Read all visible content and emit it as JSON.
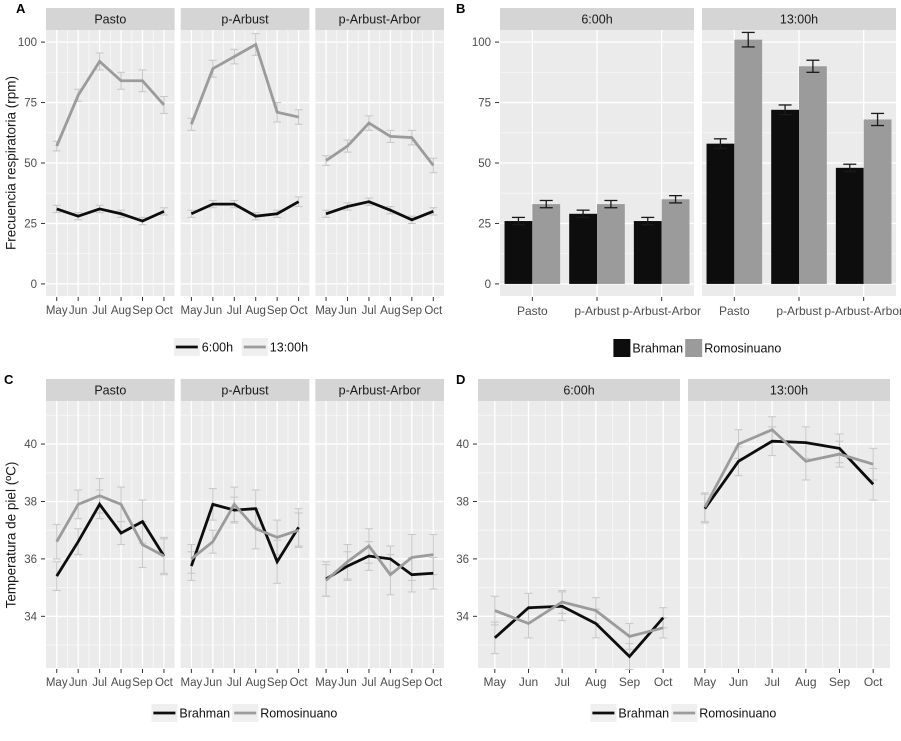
{
  "colors": {
    "background": "#ffffff",
    "panel_bg": "#ebebeb",
    "strip_bg": "#d5d5d5",
    "grid_major": "#ffffff",
    "grid_minor": "#f8f8f8",
    "series_black": "#0d0d0d",
    "series_gray": "#9b9b9b",
    "errorbar_light": "#c9c9c9",
    "errorbar_dark": "#1a1a1a",
    "axis_text": "#4d4d4d",
    "title_text": "#1a1a1a",
    "tick_mark": "#333333",
    "legend_key_bg": "#efefef"
  },
  "panels": {
    "A": {
      "tag": "A",
      "ylabel": "Frecuencia respiratoria (rpm)"
    },
    "B": {
      "tag": "B"
    },
    "C": {
      "tag": "C",
      "ylabel": "Temperatura de piel (ºC)"
    },
    "D": {
      "tag": "D"
    }
  },
  "chart_data": [
    {
      "panel": "A",
      "type": "line",
      "title": "",
      "ylabel": "Frecuencia respiratoria (rpm)",
      "facets": [
        "Pasto",
        "p-Arbust",
        "p-Arbust-Arbor"
      ],
      "x": [
        "May",
        "Jun",
        "Jul",
        "Aug",
        "Sep",
        "Oct"
      ],
      "yticks": [
        0,
        25,
        50,
        75,
        100
      ],
      "ylim": [
        -5,
        105
      ],
      "legend": [
        "6:00h",
        "13:00h"
      ],
      "legend_key": "line",
      "legend_colors": [
        "black",
        "gray"
      ],
      "legend_position": "bottom",
      "grid": true,
      "series": [
        {
          "facet": "Pasto",
          "name": "6:00h",
          "color": "black",
          "values": [
            31,
            28,
            31,
            29,
            26,
            30
          ],
          "errors": [
            1.5,
            1.5,
            1.5,
            1.5,
            1.5,
            1.5
          ]
        },
        {
          "facet": "Pasto",
          "name": "13:00h",
          "color": "gray",
          "values": [
            57,
            78,
            92,
            84,
            84,
            74
          ],
          "errors": [
            2,
            2.5,
            3.5,
            3.5,
            4.5,
            3.5
          ]
        },
        {
          "facet": "p-Arbust",
          "name": "6:00h",
          "color": "black",
          "values": [
            29,
            33,
            33,
            28,
            29,
            34
          ],
          "errors": [
            1.5,
            1.5,
            1.5,
            1.5,
            1.5,
            2
          ]
        },
        {
          "facet": "p-Arbust",
          "name": "13:00h",
          "color": "gray",
          "values": [
            66,
            89,
            94,
            99,
            71,
            69
          ],
          "errors": [
            2.5,
            3.5,
            3,
            4.5,
            4,
            3
          ]
        },
        {
          "facet": "p-Arbust-Arbor",
          "name": "6:00h",
          "color": "black",
          "values": [
            29,
            32,
            34,
            30.5,
            26.5,
            30
          ],
          "errors": [
            1.5,
            1.5,
            1.5,
            1.5,
            1.5,
            1.5
          ]
        },
        {
          "facet": "p-Arbust-Arbor",
          "name": "13:00h",
          "color": "gray",
          "values": [
            51,
            57,
            66.5,
            61,
            60.5,
            49
          ],
          "errors": [
            2,
            2.5,
            3,
            2.5,
            3,
            3
          ]
        }
      ]
    },
    {
      "panel": "B",
      "type": "bar",
      "title": "",
      "facets": [
        "6:00h",
        "13:00h"
      ],
      "categories": [
        "Pasto",
        "p-Arbust",
        "p-Arbust-Arbor"
      ],
      "yticks": [
        0,
        25,
        50,
        75,
        100
      ],
      "ylim": [
        -5,
        105
      ],
      "legend": [
        "Brahman",
        "Romosinuano"
      ],
      "legend_key": "rect",
      "legend_colors": [
        "black",
        "gray"
      ],
      "legend_position": "bottom",
      "grid": true,
      "series": [
        {
          "facet": "6:00h",
          "name": "Brahman",
          "color": "black",
          "values": [
            26,
            29,
            26
          ],
          "errors": [
            1.5,
            1.5,
            1.5
          ]
        },
        {
          "facet": "6:00h",
          "name": "Romosinuano",
          "color": "gray",
          "values": [
            33,
            33,
            35
          ],
          "errors": [
            1.5,
            1.5,
            1.5
          ]
        },
        {
          "facet": "13:00h",
          "name": "Brahman",
          "color": "black",
          "values": [
            58,
            72,
            48
          ],
          "errors": [
            2,
            2,
            1.5
          ]
        },
        {
          "facet": "13:00h",
          "name": "Romosinuano",
          "color": "gray",
          "values": [
            101,
            90,
            68
          ],
          "errors": [
            3,
            2.5,
            2.5
          ]
        }
      ]
    },
    {
      "panel": "C",
      "type": "line",
      "title": "",
      "ylabel": "Temperatura de piel (ºC)",
      "facets": [
        "Pasto",
        "p-Arbust",
        "p-Arbust-Arbor"
      ],
      "x": [
        "May",
        "Jun",
        "Jul",
        "Aug",
        "Sep",
        "Oct"
      ],
      "yticks": [
        34,
        36,
        38,
        40
      ],
      "ylim": [
        32.2,
        41.5
      ],
      "legend": [
        "Brahman",
        "Romosinuano"
      ],
      "legend_key": "line",
      "legend_colors": [
        "black",
        "gray"
      ],
      "legend_position": "bottom",
      "grid": true,
      "series": [
        {
          "facet": "Pasto",
          "name": "Brahman",
          "color": "black",
          "values": [
            35.4,
            36.6,
            37.9,
            36.9,
            37.3,
            36.1
          ],
          "errors": [
            0.5,
            0.45,
            0.5,
            0.4,
            0.75,
            0.6
          ]
        },
        {
          "facet": "Pasto",
          "name": "Romosinuano",
          "color": "gray",
          "values": [
            36.6,
            37.9,
            38.2,
            37.9,
            36.5,
            36.1
          ],
          "errors": [
            0.6,
            0.5,
            0.6,
            0.6,
            0.8,
            0.65
          ]
        },
        {
          "facet": "p-Arbust",
          "name": "Brahman",
          "color": "black",
          "values": [
            35.75,
            37.9,
            37.7,
            37.75,
            35.9,
            37.1
          ],
          "errors": [
            0.5,
            0.55,
            0.45,
            0.65,
            0.75,
            0.65
          ]
        },
        {
          "facet": "p-Arbust",
          "name": "Romosinuano",
          "color": "gray",
          "values": [
            36.0,
            36.6,
            37.9,
            37.05,
            36.75,
            37.0
          ],
          "errors": [
            0.5,
            0.4,
            0.6,
            0.7,
            0.6,
            0.6
          ]
        },
        {
          "facet": "p-Arbust-Arbor",
          "name": "Brahman",
          "color": "black",
          "values": [
            35.3,
            35.75,
            36.1,
            36.0,
            35.45,
            35.5
          ],
          "errors": [
            0.6,
            0.5,
            0.5,
            0.45,
            0.6,
            0.55
          ]
        },
        {
          "facet": "p-Arbust-Arbor",
          "name": "Romosinuano",
          "color": "gray",
          "values": [
            35.25,
            35.9,
            36.45,
            35.45,
            36.05,
            36.15
          ],
          "errors": [
            0.55,
            0.6,
            0.6,
            0.7,
            0.8,
            0.7
          ]
        }
      ]
    },
    {
      "panel": "D",
      "type": "line",
      "title": "",
      "facets": [
        "6:00h",
        "13:00h"
      ],
      "x": [
        "May",
        "Jun",
        "Jul",
        "Aug",
        "Sep",
        "Oct"
      ],
      "yticks": [
        34,
        36,
        38,
        40
      ],
      "ylim": [
        32.2,
        41.5
      ],
      "legend": [
        "Brahman",
        "Romosinuano"
      ],
      "legend_key": "line",
      "legend_colors": [
        "black",
        "gray"
      ],
      "legend_position": "bottom",
      "grid": true,
      "series": [
        {
          "facet": "6:00h",
          "name": "Brahman",
          "color": "black",
          "values": [
            33.25,
            34.3,
            34.35,
            33.75,
            32.6,
            33.95
          ],
          "errors": [
            0.55,
            0.5,
            0.5,
            0.5,
            0.45,
            0.35
          ]
        },
        {
          "facet": "6:00h",
          "name": "Romosinuano",
          "color": "gray",
          "values": [
            34.2,
            33.75,
            34.5,
            34.2,
            33.3,
            33.6
          ],
          "errors": [
            0.5,
            0.5,
            0.4,
            0.45,
            0.45,
            0.35
          ]
        },
        {
          "facet": "13:00h",
          "name": "Brahman",
          "color": "black",
          "values": [
            37.75,
            39.4,
            40.1,
            40.05,
            39.85,
            38.6
          ],
          "errors": [
            0.5,
            0.5,
            0.5,
            0.55,
            0.5,
            0.55
          ]
        },
        {
          "facet": "13:00h",
          "name": "Romosinuano",
          "color": "gray",
          "values": [
            37.8,
            40.0,
            40.5,
            39.4,
            39.65,
            39.3
          ],
          "errors": [
            0.5,
            0.5,
            0.45,
            0.65,
            0.45,
            0.55
          ]
        }
      ]
    }
  ]
}
